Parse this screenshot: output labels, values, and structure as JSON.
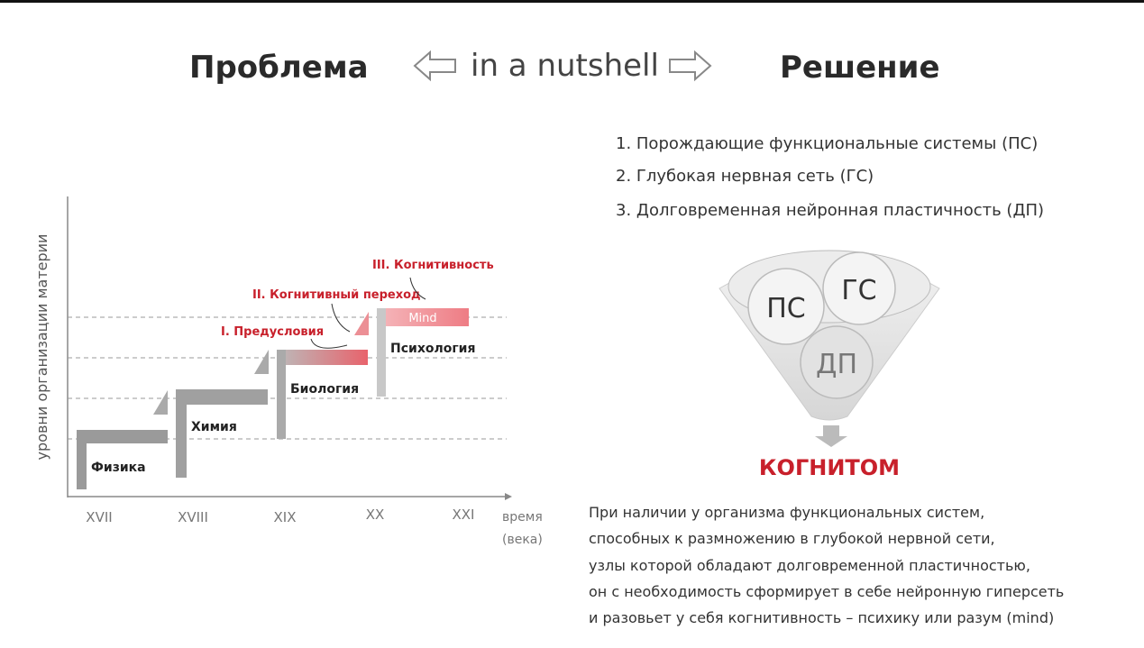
{
  "header": {
    "problem": "Проблема",
    "nutshell": "in a nutshell",
    "solution": "Решение"
  },
  "left": {
    "y_axis_label": "уровни организации материи",
    "x_axis_label": [
      "время",
      "(века)"
    ],
    "steps": [
      "Физика",
      "Химия",
      "Биология",
      "Психология"
    ],
    "mind": "Mind",
    "centuries": [
      "XVII",
      "XVIII",
      "XIX",
      "XX",
      "XXI"
    ],
    "annotations": [
      "III. Когнитивность",
      "II. Когнитивный переход",
      "I. Предусловия"
    ]
  },
  "right": {
    "list": [
      "1. Порождающие функциональные системы (ПС)",
      "2. Глубокая нервная сеть (ГС)",
      "3. Долговременная нейронная пластичность (ДП)"
    ],
    "funnel": {
      "items": [
        "ПС",
        "ГС",
        "ДП"
      ],
      "result": "КОГНИТОМ"
    },
    "paragraph": [
      "При наличии у организма функциональных систем,",
      "способных к размножению в глубокой нервной сети,",
      "узлы которой обладают долговременной пластичностью,",
      "он с необходимость сформирует в себе нейронную гиперсеть",
      "и разовьет у себя когнитивность – психику или разум (mind)"
    ]
  }
}
